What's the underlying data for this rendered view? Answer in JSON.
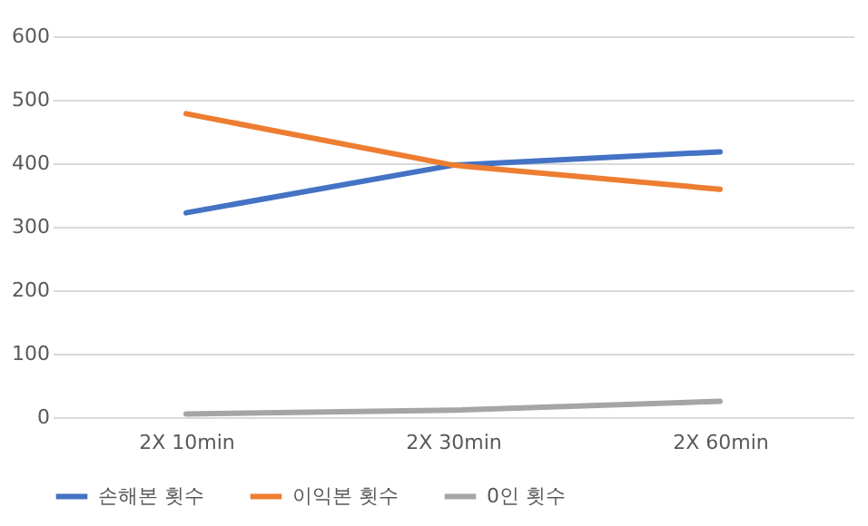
{
  "chart_data": {
    "type": "line",
    "categories": [
      "2X 10min",
      "2X 30min",
      "2X 60min"
    ],
    "series": [
      {
        "name": "손해본 횟수",
        "color": "#4472c4",
        "values": [
          322,
          397,
          418
        ]
      },
      {
        "name": "이익본 횟수",
        "color": "#ed7d31",
        "values": [
          478,
          397,
          359
        ]
      },
      {
        "name": "0인 횟수",
        "color": "#a5a5a5",
        "values": [
          5,
          11,
          25
        ]
      }
    ],
    "ylim": [
      0,
      600
    ],
    "yticks": [
      0,
      100,
      200,
      300,
      400,
      500,
      600
    ],
    "grid": "y",
    "legend": "bottom",
    "marker": "none",
    "line_style": "solid"
  }
}
